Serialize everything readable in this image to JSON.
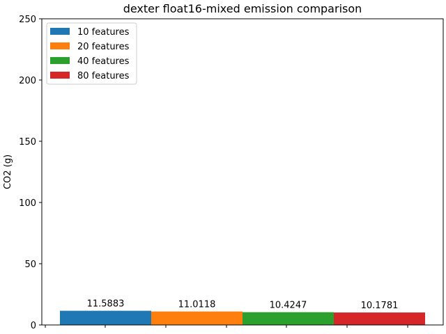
{
  "chart_data": {
    "type": "bar",
    "title": "dexter float16-mixed emission comparison",
    "xlabel": "",
    "ylabel": "CO2 (g)",
    "ylim": [
      0,
      250
    ],
    "yticks": [
      0,
      50,
      100,
      150,
      200,
      250
    ],
    "grid": false,
    "legend_position": "top-left",
    "series": [
      {
        "name": "10 features",
        "value": 11.5883,
        "label": "11.5883",
        "color": "#1f77b4"
      },
      {
        "name": "20 features",
        "value": 11.0118,
        "label": "11.0118",
        "color": "#ff7f0e"
      },
      {
        "name": "40 features",
        "value": 10.4247,
        "label": "10.4247",
        "color": "#2ca02c"
      },
      {
        "name": "80 features",
        "value": 10.1781,
        "label": "10.1781",
        "color": "#d62728"
      }
    ]
  }
}
